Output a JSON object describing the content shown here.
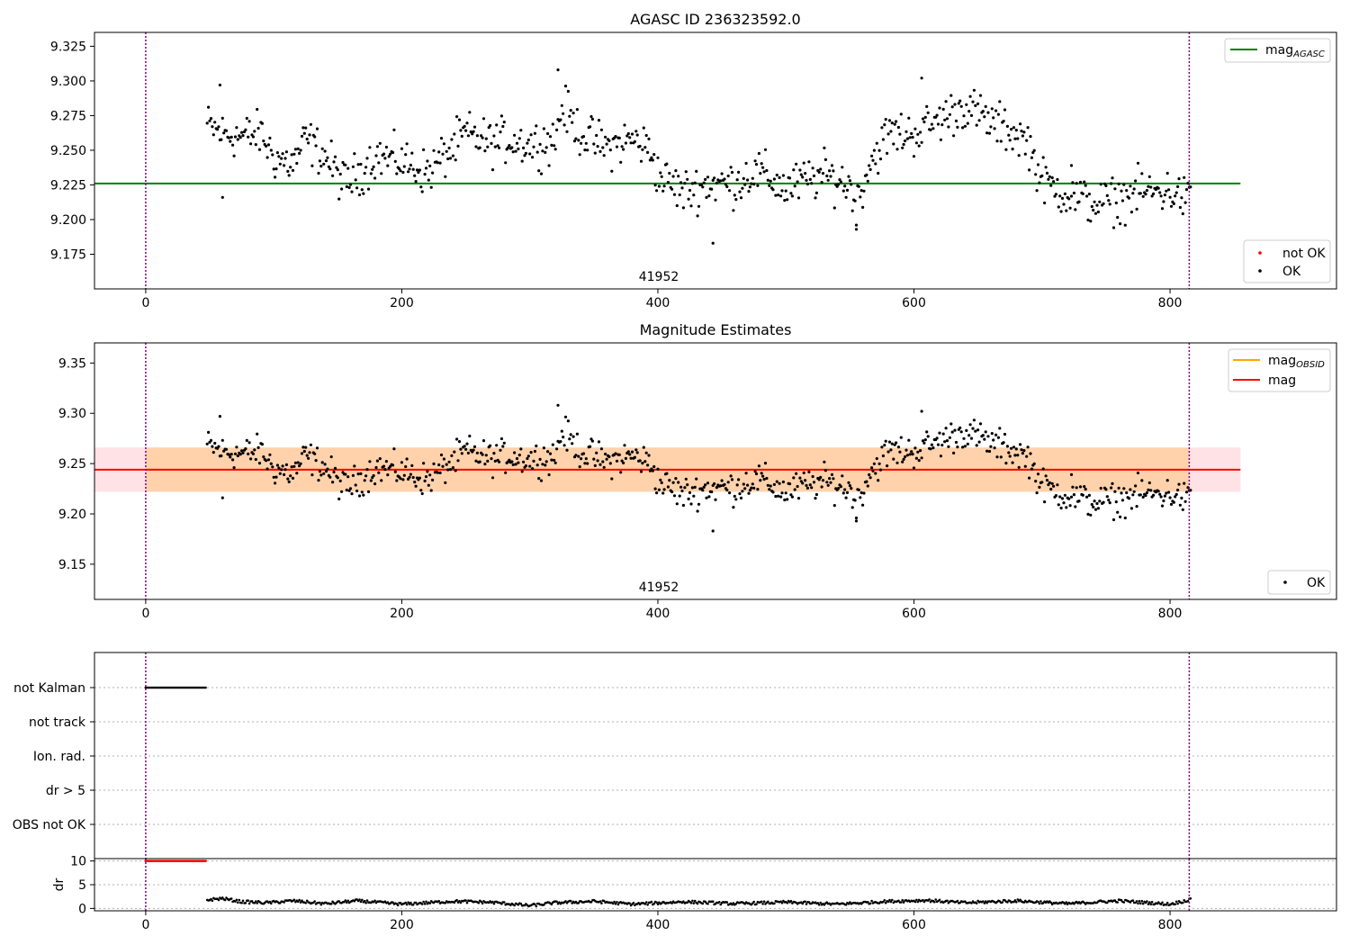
{
  "chart_data": [
    {
      "type": "scatter",
      "title": "AGASC ID 236323592.0",
      "annotation": "41952",
      "xlim": [
        -40,
        930
      ],
      "ylim": [
        9.15,
        9.335
      ],
      "xticks": [
        0,
        200,
        400,
        600,
        800
      ],
      "yticks": [
        9.175,
        9.2,
        9.225,
        9.25,
        9.275,
        9.3,
        9.325
      ],
      "ytick_labels": [
        "9.175",
        "9.200",
        "9.225",
        "9.250",
        "9.275",
        "9.300",
        "9.325"
      ],
      "vlines": [
        0,
        815
      ],
      "hline": {
        "name": "mag_AGASC",
        "value": 9.226,
        "x_range": [
          -40,
          855
        ],
        "color": "#008000"
      },
      "legend_lines": [
        {
          "label": "mag",
          "sub": "AGASC",
          "color": "#008000"
        }
      ],
      "legend_points": [
        {
          "label": "not OK",
          "color": "#ff0000"
        },
        {
          "label": "OK",
          "color": "#000000"
        }
      ]
    },
    {
      "type": "scatter",
      "title": "Magnitude Estimates",
      "annotation": "41952",
      "xlim": [
        -40,
        930
      ],
      "ylim": [
        9.115,
        9.37
      ],
      "xticks": [
        0,
        200,
        400,
        600,
        800
      ],
      "yticks": [
        9.15,
        9.2,
        9.25,
        9.3,
        9.35
      ],
      "ytick_labels": [
        "9.15",
        "9.20",
        "9.25",
        "9.30",
        "9.35"
      ],
      "vlines": [
        0,
        815
      ],
      "mag_obsid": {
        "value": 9.244,
        "band": [
          9.222,
          9.266
        ],
        "color": "#ffa500"
      },
      "mag": {
        "value": 9.244,
        "band": [
          9.222,
          9.266
        ],
        "color": "#ff0000"
      },
      "legend_lines": [
        {
          "label": "mag",
          "sub": "OBSID",
          "color": "#ffa500"
        },
        {
          "label": "mag",
          "sub": "",
          "color": "#ff0000"
        }
      ],
      "legend_points": [
        {
          "label": "OK",
          "color": "#000000"
        }
      ]
    },
    {
      "type": "scatter",
      "title": "",
      "xlim": [
        -40,
        930
      ],
      "categories": [
        "not Kalman",
        "not track",
        "Ion. rad.",
        "dr > 5",
        "OBS not OK"
      ],
      "flag_range": {
        "category": "not Kalman",
        "x": [
          0,
          48
        ]
      },
      "vlines": [
        0,
        815
      ]
    },
    {
      "type": "scatter",
      "ylabel": "dr",
      "xlim": [
        -40,
        930
      ],
      "ylim": [
        -0.5,
        10.5
      ],
      "xticks": [
        0,
        200,
        400,
        600,
        800
      ],
      "yticks": [
        0,
        5,
        10
      ],
      "ytick_labels": [
        "0",
        "5",
        "10"
      ],
      "clipped": {
        "value": 10,
        "x": [
          0,
          48
        ],
        "color": "#ff0000"
      },
      "vlines": [
        0,
        815
      ]
    }
  ],
  "series_anchors": {
    "x_range": [
      48,
      816
    ],
    "mag_knots": [
      [
        48,
        9.268
      ],
      [
        60,
        9.262
      ],
      [
        75,
        9.26
      ],
      [
        90,
        9.262
      ],
      [
        100,
        9.245
      ],
      [
        115,
        9.24
      ],
      [
        125,
        9.258
      ],
      [
        140,
        9.246
      ],
      [
        155,
        9.226
      ],
      [
        165,
        9.232
      ],
      [
        180,
        9.246
      ],
      [
        200,
        9.242
      ],
      [
        220,
        9.234
      ],
      [
        240,
        9.252
      ],
      [
        250,
        9.262
      ],
      [
        270,
        9.255
      ],
      [
        285,
        9.258
      ],
      [
        300,
        9.254
      ],
      [
        320,
        9.258
      ],
      [
        325,
        9.282
      ],
      [
        340,
        9.262
      ],
      [
        360,
        9.252
      ],
      [
        380,
        9.258
      ],
      [
        395,
        9.25
      ],
      [
        400,
        9.232
      ],
      [
        420,
        9.22
      ],
      [
        440,
        9.226
      ],
      [
        460,
        9.226
      ],
      [
        470,
        9.232
      ],
      [
        480,
        9.234
      ],
      [
        500,
        9.222
      ],
      [
        515,
        9.228
      ],
      [
        530,
        9.232
      ],
      [
        550,
        9.225
      ],
      [
        555,
        9.21
      ],
      [
        565,
        9.24
      ],
      [
        580,
        9.262
      ],
      [
        600,
        9.262
      ],
      [
        620,
        9.272
      ],
      [
        640,
        9.282
      ],
      [
        660,
        9.27
      ],
      [
        680,
        9.262
      ],
      [
        690,
        9.255
      ],
      [
        695,
        9.24
      ],
      [
        700,
        9.228
      ],
      [
        720,
        9.218
      ],
      [
        740,
        9.212
      ],
      [
        760,
        9.214
      ],
      [
        775,
        9.22
      ],
      [
        800,
        9.22
      ],
      [
        815,
        9.214
      ]
    ],
    "dr_knots": [
      [
        48,
        1.8
      ],
      [
        60,
        2.1
      ],
      [
        75,
        1.4
      ],
      [
        95,
        1.2
      ],
      [
        115,
        1.6
      ],
      [
        140,
        1.0
      ],
      [
        165,
        1.6
      ],
      [
        200,
        0.9
      ],
      [
        240,
        1.5
      ],
      [
        270,
        1.3
      ],
      [
        300,
        0.6
      ],
      [
        320,
        1.2
      ],
      [
        350,
        1.5
      ],
      [
        380,
        0.9
      ],
      [
        420,
        1.4
      ],
      [
        460,
        1.0
      ],
      [
        500,
        1.3
      ],
      [
        540,
        0.9
      ],
      [
        580,
        1.5
      ],
      [
        610,
        1.7
      ],
      [
        640,
        1.2
      ],
      [
        680,
        1.6
      ],
      [
        720,
        1.0
      ],
      [
        760,
        1.6
      ],
      [
        800,
        0.9
      ],
      [
        815,
        1.8
      ]
    ]
  }
}
